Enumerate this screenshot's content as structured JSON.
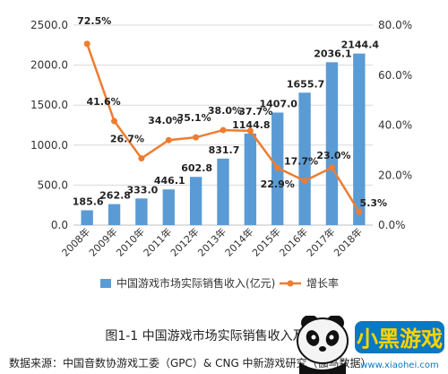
{
  "chart_data": {
    "type": "bar+line",
    "categories": [
      "2008年",
      "2009年",
      "2010年",
      "2011年",
      "2012年",
      "2013年",
      "2014年",
      "2015年",
      "2016年",
      "2017年",
      "2018年"
    ],
    "series": [
      {
        "name": "中国游戏市场实际销售收入(亿元)",
        "type": "bar",
        "axis": "left",
        "values": [
          185.6,
          262.8,
          333.0,
          446.1,
          602.8,
          831.7,
          1144.8,
          1407.0,
          1655.7,
          2036.1,
          2144.4
        ],
        "labels": [
          "185.6",
          "262.8",
          "333.0",
          "446.1",
          "602.8",
          "831.7",
          "1144.8",
          "1407.0",
          "1655.7",
          "2036.1",
          "2144.4"
        ],
        "color": "#5b9bd5"
      },
      {
        "name": "增长率",
        "type": "line",
        "axis": "right",
        "values": [
          72.5,
          41.6,
          26.7,
          34.0,
          35.1,
          38.0,
          37.7,
          22.9,
          17.7,
          23.0,
          5.3
        ],
        "labels": [
          "72.5%",
          "41.6%",
          "26.7%",
          "34.0%",
          "35.1%",
          "38.0%",
          "37.7%",
          "22.9%",
          "17.7%",
          "23.0%",
          "5.3%"
        ],
        "color": "#ed7d31"
      }
    ],
    "y_left": {
      "min": 0,
      "max": 2500,
      "ticks": [
        "0.0",
        "500.0",
        "1000.0",
        "1500.0",
        "2000.0",
        "2500.0"
      ]
    },
    "y_right": {
      "min": 0,
      "max": 80,
      "ticks": [
        "0.0%",
        "20.0%",
        "40.0%",
        "60.0%",
        "80.0%"
      ]
    },
    "grid": true,
    "legend_position": "bottom"
  },
  "caption": "图1-1  中国游戏市场实际销售收入及增长率",
  "source": "数据来源：中国音数协游戏工委（GPC）& CNG 中新游戏研究（伽马数据）",
  "watermark": {
    "brand": "小黑游戏",
    "url": "www.xiaohei.com"
  }
}
